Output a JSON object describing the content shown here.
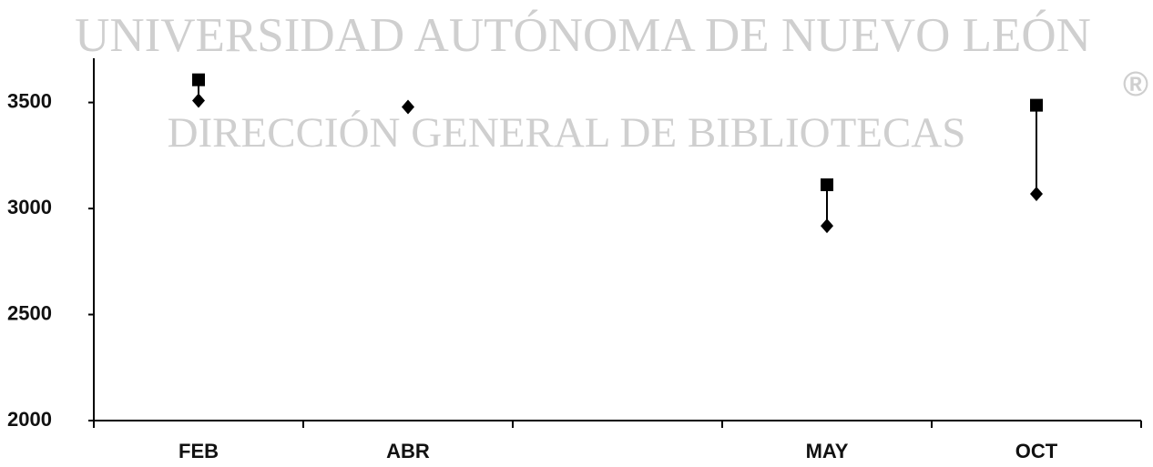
{
  "watermark": {
    "line1": "UNIVERSIDAD AUTÓNOMA DE NUEVO LEÓN",
    "line2": "DIRECCIÓN GENERAL DE BIBLIOTECAS",
    "mark": "®"
  },
  "chart_data": {
    "type": "hilo",
    "categories": [
      "FEB",
      "ABR",
      null,
      "MAY",
      "OCT"
    ],
    "series": [
      {
        "color": "#000000",
        "marker": "square",
        "values": [
          3607,
          null,
          null,
          3112,
          3487
        ]
      },
      {
        "color": "#000000",
        "marker": "diamond",
        "values": [
          3509,
          3479,
          null,
          2918,
          3069
        ]
      }
    ],
    "hi_lo_lines": true,
    "ylim": [
      2000,
      3700
    ],
    "yticks": [
      2000,
      2500,
      3000,
      3500
    ]
  }
}
